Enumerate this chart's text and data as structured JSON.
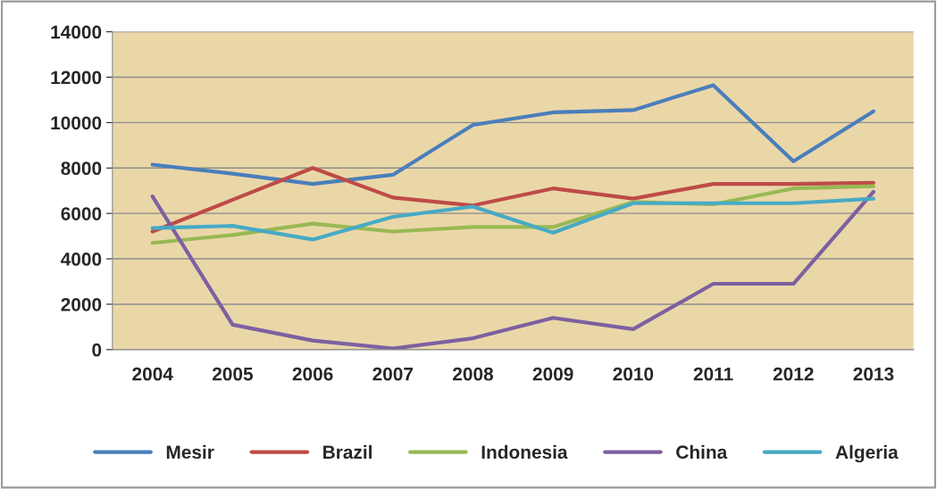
{
  "chart_data": {
    "type": "line",
    "categories": [
      "2004",
      "2005",
      "2006",
      "2007",
      "2008",
      "2009",
      "2010",
      "2011",
      "2012",
      "2013"
    ],
    "series": [
      {
        "name": "Mesir",
        "color": "#4a7ebb",
        "values": [
          8150,
          7750,
          7300,
          7700,
          9900,
          10450,
          10550,
          11650,
          8300,
          10500
        ]
      },
      {
        "name": "Brazil",
        "color": "#be4b48",
        "values": [
          5200,
          6600,
          8000,
          6700,
          6350,
          7100,
          6650,
          7300,
          7300,
          7350
        ]
      },
      {
        "name": "Indonesia",
        "color": "#98b954",
        "values": [
          4700,
          5050,
          5550,
          5200,
          5400,
          5400,
          6500,
          6400,
          7100,
          7200
        ]
      },
      {
        "name": "China",
        "color": "#7d60a0",
        "values": [
          6750,
          1100,
          400,
          50,
          500,
          1400,
          900,
          2900,
          2900,
          6950
        ]
      },
      {
        "name": "Algeria",
        "color": "#46aac5",
        "values": [
          5350,
          5450,
          4850,
          5850,
          6300,
          5150,
          6450,
          6450,
          6450,
          6650
        ]
      }
    ],
    "ylim": [
      0,
      14000
    ],
    "yticks": [
      0,
      2000,
      4000,
      6000,
      8000,
      10000,
      12000,
      14000
    ],
    "grid": "y",
    "legend": "bottom",
    "marker": "none",
    "line_style": "solid"
  }
}
